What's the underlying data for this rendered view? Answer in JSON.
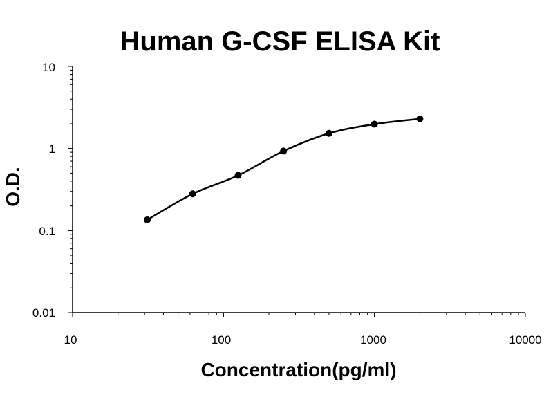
{
  "chart_data": {
    "type": "scatter",
    "title": "Human G-CSF ELISA Kit",
    "xlabel": "Concentration(pg/ml)",
    "ylabel": "O.D.",
    "x_scale": "log",
    "y_scale": "log",
    "xlim": [
      10,
      10000
    ],
    "ylim": [
      0.01,
      10
    ],
    "x_ticks": [
      "10",
      "100",
      "1000",
      "10000"
    ],
    "y_ticks": [
      "10",
      "1",
      "0.1",
      "0.01"
    ],
    "grid": false,
    "legend": "none",
    "series": [
      {
        "x": [
          31.25,
          62.5,
          125,
          250,
          500,
          1000,
          2000
        ],
        "y": [
          0.135,
          0.28,
          0.47,
          0.93,
          1.53,
          1.98,
          2.3
        ],
        "marker": "circle",
        "fit_line": true,
        "color": "#000000"
      }
    ]
  }
}
